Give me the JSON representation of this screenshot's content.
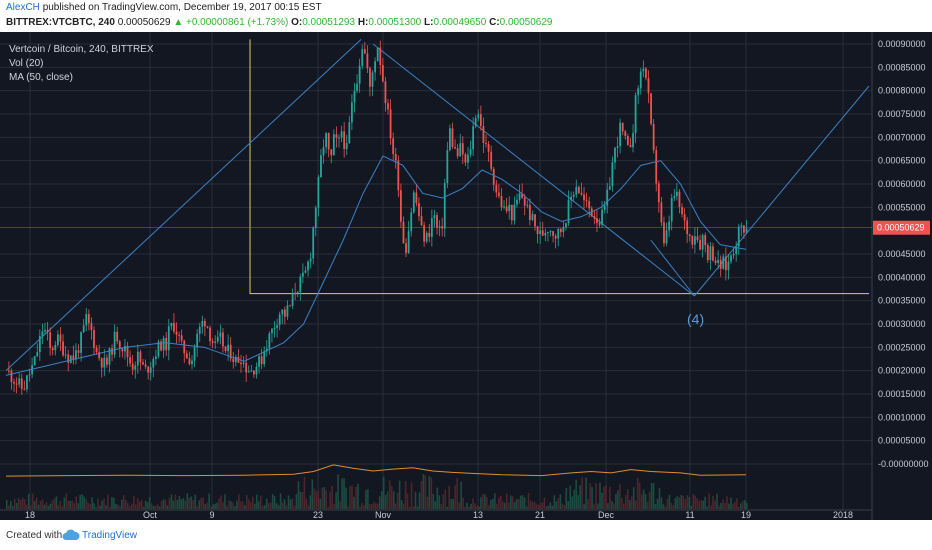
{
  "header": {
    "author": "AlexCH",
    "published_text": "published on TradingView.com, December 19, 2017 00:15 EST",
    "symbol": "BITTREX:VTCBTC, 240",
    "price": "0.00050629",
    "change_arrow": "▲",
    "change": "+0.00000861 (+1.73%)",
    "o_label": "O:",
    "o_value": "0.00051293",
    "h_label": "H:",
    "h_value": "0.00051300",
    "l_label": "L:",
    "l_value": "0.00049650",
    "c_label": "C:",
    "c_value": "0.00050629"
  },
  "legend": {
    "title": "Vertcoin / Bitcoin, 240, BITTREX",
    "vol": "Vol (20)",
    "ma": "MA (50, close)"
  },
  "annotation": "(4)",
  "footer": {
    "created_with": "Created with",
    "brand": "TradingView"
  },
  "colors": {
    "background": "#131722",
    "grid": "#2a2e39",
    "up": "#26a69a",
    "down": "#ef5350",
    "ma": "#3a82c4",
    "trendline": "#3a82c4",
    "box": "#d7d44a",
    "volume_ma": "#e38b2c",
    "price_tag": "#ef5350"
  },
  "chart_data": {
    "type": "candlestick",
    "title": "Vertcoin / Bitcoin, 240, BITTREX",
    "ylim": [
      -4e-08,
      9.1e-07
    ],
    "y_unit_scale": 1e-08,
    "ylim_scaled": [
      -4,
      91
    ],
    "price_ticks": [
      "0.00090000",
      "0.00085000",
      "0.00080000",
      "0.00075000",
      "0.00070000",
      "0.00065000",
      "0.00060000",
      "0.00055000",
      "0.00045000",
      "0.00040000",
      "0.00035000",
      "0.00030000",
      "0.00025000",
      "0.00020000",
      "0.00015000",
      "0.00010000",
      "0.00005000",
      "-0.00000000"
    ],
    "price_tick_values": [
      90,
      85,
      80,
      75,
      70,
      65,
      60,
      55,
      45,
      40,
      35,
      30,
      25,
      20,
      15,
      10,
      5,
      0
    ],
    "x_ticks": [
      "18",
      "Oct",
      "9",
      "23",
      "Nov",
      "13",
      "21",
      "Dec",
      "11",
      "19",
      "2018"
    ],
    "last_price": "0.00050629",
    "last_price_value": 50.629,
    "price_curve_scaled": [
      [
        0,
        20
      ],
      [
        8,
        18
      ],
      [
        16,
        16
      ],
      [
        22,
        19
      ],
      [
        28,
        22
      ],
      [
        36,
        29
      ],
      [
        40,
        28
      ],
      [
        44,
        24
      ],
      [
        50,
        27
      ],
      [
        56,
        25
      ],
      [
        62,
        23
      ],
      [
        68,
        23
      ],
      [
        74,
        26
      ],
      [
        80,
        31
      ],
      [
        86,
        28
      ],
      [
        90,
        24
      ],
      [
        96,
        22
      ],
      [
        100,
        21
      ],
      [
        106,
        25
      ],
      [
        110,
        28
      ],
      [
        114,
        26
      ],
      [
        120,
        24
      ],
      [
        126,
        21
      ],
      [
        132,
        23
      ],
      [
        136,
        21
      ],
      [
        140,
        20
      ],
      [
        146,
        22
      ],
      [
        150,
        24
      ],
      [
        156,
        26
      ],
      [
        160,
        25
      ],
      [
        164,
        29
      ],
      [
        168,
        30
      ],
      [
        172,
        28
      ],
      [
        176,
        25
      ],
      [
        180,
        24
      ],
      [
        186,
        22
      ],
      [
        190,
        26
      ],
      [
        196,
        30
      ],
      [
        200,
        31
      ],
      [
        206,
        27
      ],
      [
        210,
        25
      ],
      [
        216,
        27
      ],
      [
        220,
        24
      ],
      [
        226,
        24
      ],
      [
        230,
        22
      ],
      [
        236,
        23
      ],
      [
        240,
        21
      ],
      [
        246,
        20
      ],
      [
        250,
        21
      ],
      [
        256,
        22
      ],
      [
        260,
        25
      ],
      [
        266,
        28
      ],
      [
        270,
        30
      ],
      [
        276,
        33
      ],
      [
        280,
        32
      ],
      [
        286,
        34
      ],
      [
        290,
        37
      ],
      [
        296,
        39
      ],
      [
        300,
        40
      ],
      [
        306,
        45
      ],
      [
        310,
        53
      ],
      [
        314,
        60
      ],
      [
        318,
        68
      ],
      [
        322,
        70
      ],
      [
        326,
        64
      ],
      [
        330,
        70
      ],
      [
        334,
        68
      ],
      [
        338,
        72
      ],
      [
        342,
        66
      ],
      [
        346,
        74
      ],
      [
        350,
        80
      ],
      [
        354,
        84
      ],
      [
        358,
        90
      ],
      [
        362,
        87
      ],
      [
        366,
        80
      ],
      [
        370,
        86
      ],
      [
        374,
        90
      ],
      [
        378,
        84
      ],
      [
        382,
        78
      ],
      [
        386,
        72
      ],
      [
        390,
        66
      ],
      [
        394,
        62
      ],
      [
        396,
        56
      ],
      [
        398,
        50
      ],
      [
        402,
        46
      ],
      [
        406,
        52
      ],
      [
        410,
        58
      ],
      [
        414,
        55
      ],
      [
        418,
        50
      ],
      [
        422,
        48
      ],
      [
        426,
        50
      ],
      [
        430,
        54
      ],
      [
        434,
        50
      ],
      [
        438,
        49
      ],
      [
        442,
        62
      ],
      [
        446,
        72
      ],
      [
        450,
        68
      ],
      [
        454,
        66
      ],
      [
        458,
        68
      ],
      [
        462,
        64
      ],
      [
        466,
        66
      ],
      [
        470,
        72
      ],
      [
        474,
        77
      ],
      [
        478,
        72
      ],
      [
        482,
        68
      ],
      [
        486,
        66
      ],
      [
        490,
        62
      ],
      [
        494,
        58
      ],
      [
        498,
        56
      ],
      [
        502,
        54
      ],
      [
        506,
        55
      ],
      [
        510,
        53
      ],
      [
        514,
        56
      ],
      [
        518,
        58
      ],
      [
        522,
        56
      ],
      [
        526,
        54
      ],
      [
        530,
        52
      ],
      [
        534,
        50
      ],
      [
        538,
        49
      ],
      [
        542,
        50
      ],
      [
        546,
        51
      ],
      [
        550,
        50
      ],
      [
        554,
        49
      ],
      [
        558,
        50
      ],
      [
        562,
        52
      ],
      [
        566,
        55
      ],
      [
        570,
        58
      ],
      [
        574,
        60
      ],
      [
        578,
        58
      ],
      [
        582,
        56
      ],
      [
        586,
        55
      ],
      [
        590,
        54
      ],
      [
        594,
        53
      ],
      [
        598,
        52
      ],
      [
        602,
        54
      ],
      [
        606,
        58
      ],
      [
        610,
        64
      ],
      [
        614,
        68
      ],
      [
        618,
        72
      ],
      [
        622,
        70
      ],
      [
        626,
        67
      ],
      [
        630,
        70
      ],
      [
        634,
        78
      ],
      [
        638,
        83
      ],
      [
        642,
        86
      ],
      [
        646,
        80
      ],
      [
        650,
        70
      ],
      [
        654,
        62
      ],
      [
        658,
        55
      ],
      [
        662,
        46
      ],
      [
        666,
        50
      ],
      [
        670,
        56
      ],
      [
        674,
        58
      ],
      [
        678,
        55
      ],
      [
        682,
        52
      ],
      [
        686,
        50
      ],
      [
        690,
        48
      ],
      [
        694,
        50
      ],
      [
        698,
        47
      ],
      [
        702,
        49
      ],
      [
        706,
        45
      ],
      [
        710,
        46
      ],
      [
        714,
        44
      ],
      [
        718,
        42
      ],
      [
        722,
        43
      ],
      [
        726,
        42
      ],
      [
        730,
        45
      ],
      [
        734,
        47
      ],
      [
        738,
        50
      ],
      [
        742,
        51
      ],
      [
        746,
        50.6
      ]
    ],
    "ma_curve_scaled": [
      [
        0,
        19
      ],
      [
        40,
        21
      ],
      [
        80,
        23
      ],
      [
        120,
        25
      ],
      [
        160,
        26
      ],
      [
        200,
        25
      ],
      [
        240,
        22
      ],
      [
        280,
        26
      ],
      [
        300,
        30
      ],
      [
        320,
        39
      ],
      [
        340,
        48
      ],
      [
        360,
        58
      ],
      [
        380,
        66
      ],
      [
        400,
        64
      ],
      [
        420,
        58
      ],
      [
        440,
        57
      ],
      [
        460,
        59
      ],
      [
        480,
        63
      ],
      [
        500,
        61
      ],
      [
        520,
        58
      ],
      [
        540,
        54
      ],
      [
        560,
        52
      ],
      [
        580,
        53
      ],
      [
        600,
        55
      ],
      [
        620,
        59
      ],
      [
        640,
        64
      ],
      [
        660,
        65
      ],
      [
        680,
        60
      ],
      [
        700,
        52
      ],
      [
        720,
        47
      ],
      [
        746,
        46
      ]
    ],
    "volume_ma_scaled": [
      [
        0,
        -2.6
      ],
      [
        60,
        -2.5
      ],
      [
        120,
        -2.4
      ],
      [
        180,
        -2.5
      ],
      [
        240,
        -2.4
      ],
      [
        290,
        -2.2
      ],
      [
        310,
        -1.6
      ],
      [
        330,
        -0.2
      ],
      [
        350,
        -0.9
      ],
      [
        370,
        -1.5
      ],
      [
        390,
        -1.1
      ],
      [
        410,
        -0.8
      ],
      [
        430,
        -1.5
      ],
      [
        450,
        -1.8
      ],
      [
        470,
        -2.0
      ],
      [
        500,
        -2.3
      ],
      [
        540,
        -2.5
      ],
      [
        570,
        -1.9
      ],
      [
        590,
        -1.6
      ],
      [
        610,
        -1.9
      ],
      [
        630,
        -1.2
      ],
      [
        650,
        -1.6
      ],
      [
        680,
        -1.9
      ],
      [
        700,
        -2.4
      ],
      [
        746,
        -2.3
      ]
    ],
    "trendlines_scaled": [
      [
        [
          0,
          20
        ],
        [
          358,
          91
        ]
      ],
      [
        [
          370,
          90
        ],
        [
          694,
          36
        ]
      ],
      [
        [
          694,
          36
        ],
        [
          870,
          81
        ]
      ],
      [
        [
          650,
          48
        ],
        [
          694,
          36
        ]
      ]
    ],
    "box_scaled": {
      "x1": 246,
      "x2": 870,
      "y_top": 91,
      "y_bottom": 36.5
    }
  }
}
